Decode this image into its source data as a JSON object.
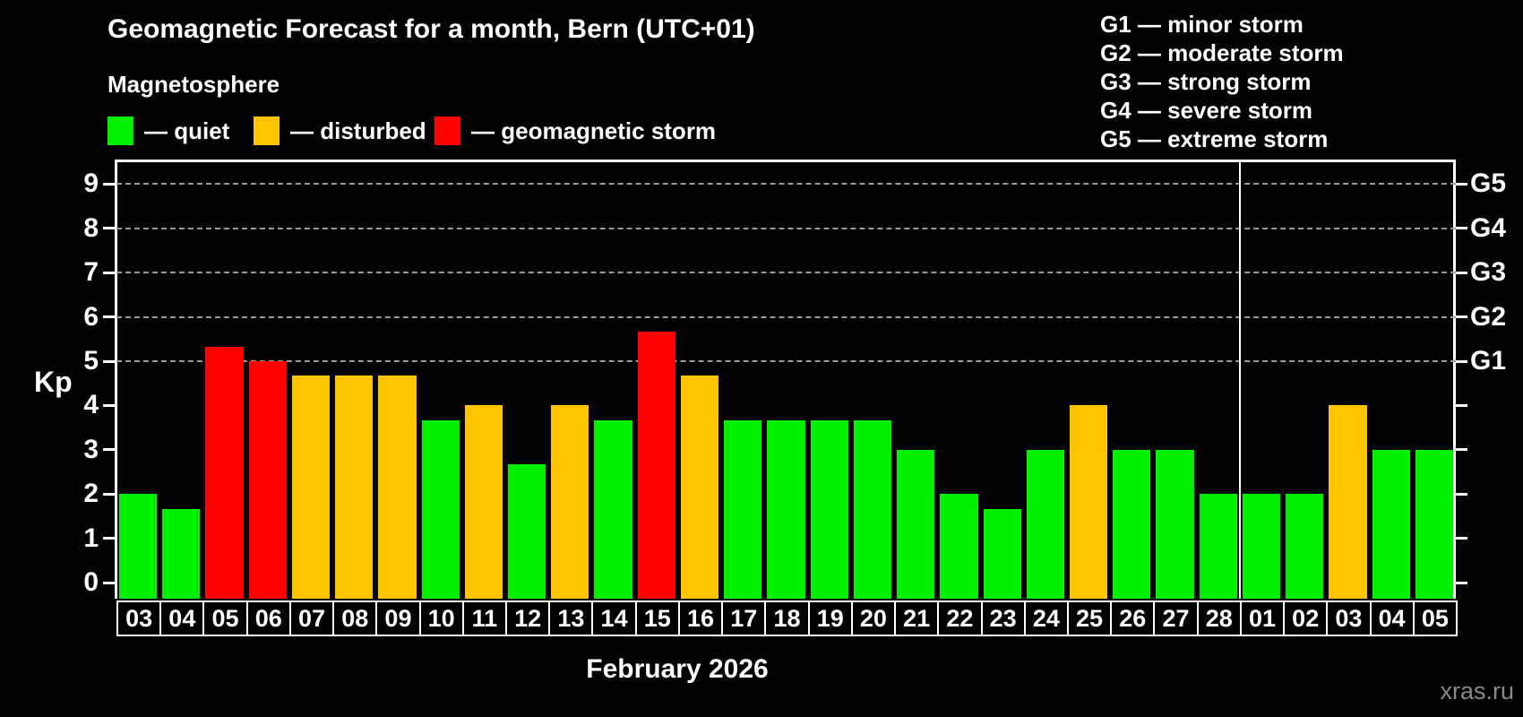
{
  "title": "Geomagnetic Forecast for a month, Bern (UTC+01)",
  "subtitle": "Magnetosphere",
  "legend": {
    "items": [
      {
        "label": "— quiet",
        "status": "quiet",
        "color": "#00f000"
      },
      {
        "label": "— disturbed",
        "status": "disturbed",
        "color": "#ffc400"
      },
      {
        "label": "— geomagnetic storm",
        "status": "storm",
        "color": "#ff0000"
      }
    ]
  },
  "g_legend": [
    "G1 — minor storm",
    "G2 — moderate storm",
    "G3 — strong storm",
    "G4 — severe storm",
    "G5 — extreme storm"
  ],
  "y_axis": {
    "label": "Kp",
    "ticks": [
      0,
      1,
      2,
      3,
      4,
      5,
      6,
      7,
      8,
      9
    ]
  },
  "right_axis": {
    "labels": [
      {
        "text": "G1",
        "kp": 5
      },
      {
        "text": "G2",
        "kp": 6
      },
      {
        "text": "G3",
        "kp": 7
      },
      {
        "text": "G4",
        "kp": 8
      },
      {
        "text": "G5",
        "kp": 9
      }
    ]
  },
  "x_axis_caption": "February 2026",
  "watermark": "xras.ru",
  "chart_data": {
    "type": "bar",
    "title": "Geomagnetic Forecast for a month, Bern (UTC+01)",
    "ylabel": "Kp",
    "ylim": [
      0,
      9
    ],
    "grid_levels": [
      5,
      6,
      7,
      8,
      9
    ],
    "legend_position": "top",
    "month_separator_after_index": 25,
    "bars": [
      {
        "day": "03",
        "kp": 2,
        "status": "quiet"
      },
      {
        "day": "04",
        "kp": 1.67,
        "status": "quiet"
      },
      {
        "day": "05",
        "kp": 5.33,
        "status": "storm"
      },
      {
        "day": "06",
        "kp": 5,
        "status": "storm"
      },
      {
        "day": "07",
        "kp": 4.67,
        "status": "disturbed"
      },
      {
        "day": "08",
        "kp": 4.67,
        "status": "disturbed"
      },
      {
        "day": "09",
        "kp": 4.67,
        "status": "disturbed"
      },
      {
        "day": "10",
        "kp": 3.67,
        "status": "quiet"
      },
      {
        "day": "11",
        "kp": 4,
        "status": "disturbed"
      },
      {
        "day": "12",
        "kp": 2.67,
        "status": "quiet"
      },
      {
        "day": "13",
        "kp": 4,
        "status": "disturbed"
      },
      {
        "day": "14",
        "kp": 3.67,
        "status": "quiet"
      },
      {
        "day": "15",
        "kp": 5.67,
        "status": "storm"
      },
      {
        "day": "16",
        "kp": 4.67,
        "status": "disturbed"
      },
      {
        "day": "17",
        "kp": 3.67,
        "status": "quiet"
      },
      {
        "day": "18",
        "kp": 3.67,
        "status": "quiet"
      },
      {
        "day": "19",
        "kp": 3.67,
        "status": "quiet"
      },
      {
        "day": "20",
        "kp": 3.67,
        "status": "quiet"
      },
      {
        "day": "21",
        "kp": 3,
        "status": "quiet"
      },
      {
        "day": "22",
        "kp": 2,
        "status": "quiet"
      },
      {
        "day": "23",
        "kp": 1.67,
        "status": "quiet"
      },
      {
        "day": "24",
        "kp": 3,
        "status": "quiet"
      },
      {
        "day": "25",
        "kp": 4,
        "status": "disturbed"
      },
      {
        "day": "26",
        "kp": 3,
        "status": "quiet"
      },
      {
        "day": "27",
        "kp": 3,
        "status": "quiet"
      },
      {
        "day": "28",
        "kp": 2,
        "status": "quiet"
      },
      {
        "day": "01",
        "kp": 2,
        "status": "quiet"
      },
      {
        "day": "02",
        "kp": 2,
        "status": "quiet"
      },
      {
        "day": "03",
        "kp": 4,
        "status": "disturbed"
      },
      {
        "day": "04",
        "kp": 3,
        "status": "quiet"
      },
      {
        "day": "05",
        "kp": 3,
        "status": "quiet"
      }
    ]
  }
}
